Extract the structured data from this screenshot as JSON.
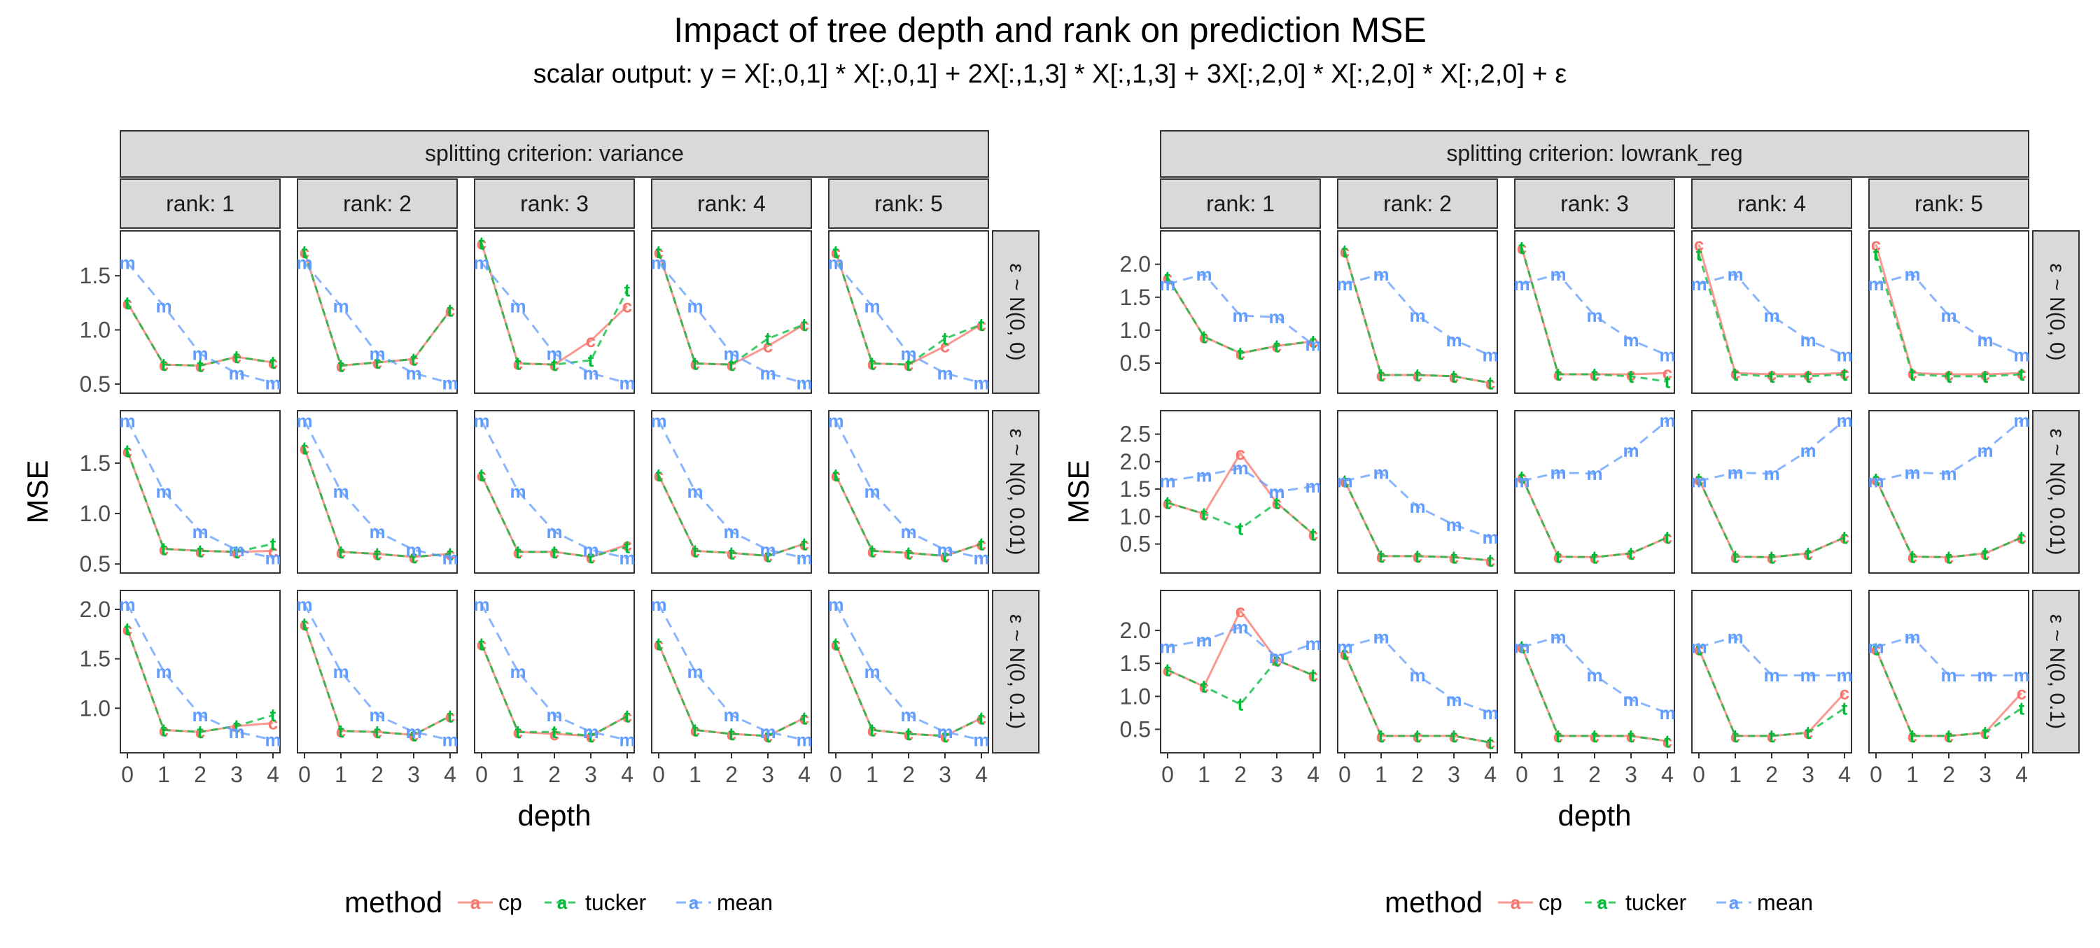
{
  "title": "Impact of tree depth and rank on prediction MSE",
  "subtitle": "scalar output:  y = X[:,0,1] * X[:,0,1] + 2X[:,1,3] * X[:,1,3] + 3X[:,2,0] * X[:,2,0] * X[:,2,0] + ε",
  "colors": {
    "cp": "#F8766D",
    "tucker": "#00BA38",
    "mean": "#619CFF",
    "strip_bg": "#D9D9D9",
    "panel_border": "#333333"
  },
  "legend": {
    "title": "method",
    "keys": [
      "a",
      "a",
      "a"
    ]
  },
  "chart_data": [
    {
      "type": "line",
      "strip": "splitting criterion: variance",
      "xlabel": "depth",
      "ylabel": "MSE",
      "x": [
        0,
        1,
        2,
        3,
        4
      ],
      "x_tick_labels": [
        "0",
        "1",
        "2",
        "3",
        "4"
      ],
      "columns": [
        "rank: 1",
        "rank: 2",
        "rank: 3",
        "rank: 4",
        "rank: 5"
      ],
      "legend": [
        "cp",
        "tucker",
        "mean"
      ],
      "point_labels": {
        "cp": "c",
        "tucker": "t",
        "mean": "m"
      },
      "rows": [
        {
          "label": "ε ~ N(0, 0)",
          "ylim": [
            0.48,
            1.85
          ],
          "yticks": [
            0.5,
            1.0,
            1.5
          ],
          "ytick_labels": [
            "0.5",
            "1.0",
            "1.5"
          ],
          "panels": [
            {
              "cp": [
                1.25,
                0.68,
                0.67,
                0.75,
                0.7
              ],
              "tucker": [
                1.25,
                0.68,
                0.67,
                0.75,
                0.7
              ],
              "mean": [
                1.62,
                1.22,
                0.78,
                0.6,
                0.51
              ]
            },
            {
              "cp": [
                1.72,
                0.67,
                0.7,
                0.73,
                1.18
              ],
              "tucker": [
                1.72,
                0.67,
                0.7,
                0.73,
                1.18
              ],
              "mean": [
                1.62,
                1.22,
                0.78,
                0.6,
                0.51
              ]
            },
            {
              "cp": [
                1.8,
                0.69,
                0.68,
                0.9,
                1.22
              ],
              "tucker": [
                1.8,
                0.69,
                0.68,
                0.72,
                1.37
              ],
              "mean": [
                1.62,
                1.22,
                0.78,
                0.6,
                0.51
              ]
            },
            {
              "cp": [
                1.72,
                0.69,
                0.68,
                0.85,
                1.05
              ],
              "tucker": [
                1.72,
                0.69,
                0.68,
                0.92,
                1.05
              ],
              "mean": [
                1.62,
                1.22,
                0.78,
                0.6,
                0.51
              ]
            },
            {
              "cp": [
                1.72,
                0.69,
                0.68,
                0.85,
                1.05
              ],
              "tucker": [
                1.72,
                0.69,
                0.68,
                0.92,
                1.05
              ],
              "mean": [
                1.62,
                1.22,
                0.78,
                0.6,
                0.51
              ]
            }
          ]
        },
        {
          "label": "ε ~ N(0, 0.01)",
          "ylim": [
            0.48,
            1.95
          ],
          "yticks": [
            0.5,
            1.0,
            1.5
          ],
          "ytick_labels": [
            "0.5",
            "1.0",
            "1.5"
          ],
          "panels": [
            {
              "cp": [
                1.62,
                0.65,
                0.63,
                0.62,
                0.63
              ],
              "tucker": [
                1.62,
                0.65,
                0.63,
                0.62,
                0.7
              ],
              "mean": [
                1.92,
                1.22,
                0.82,
                0.64,
                0.56
              ]
            },
            {
              "cp": [
                1.65,
                0.62,
                0.6,
                0.57,
                0.6
              ],
              "tucker": [
                1.65,
                0.62,
                0.6,
                0.57,
                0.6
              ],
              "mean": [
                1.92,
                1.22,
                0.82,
                0.64,
                0.56
              ]
            },
            {
              "cp": [
                1.38,
                0.62,
                0.62,
                0.57,
                0.69
              ],
              "tucker": [
                1.38,
                0.62,
                0.62,
                0.57,
                0.67
              ],
              "mean": [
                1.92,
                1.22,
                0.82,
                0.64,
                0.56
              ]
            },
            {
              "cp": [
                1.38,
                0.63,
                0.61,
                0.58,
                0.7
              ],
              "tucker": [
                1.38,
                0.63,
                0.61,
                0.58,
                0.7
              ],
              "mean": [
                1.92,
                1.22,
                0.82,
                0.64,
                0.56
              ]
            },
            {
              "cp": [
                1.38,
                0.63,
                0.61,
                0.58,
                0.7
              ],
              "tucker": [
                1.38,
                0.63,
                0.61,
                0.58,
                0.7
              ],
              "mean": [
                1.92,
                1.22,
                0.82,
                0.64,
                0.56
              ]
            }
          ]
        },
        {
          "label": "ε ~ N(0, 0.1)",
          "ylim": [
            0.62,
            2.12
          ],
          "yticks": [
            1.0,
            1.5,
            2.0
          ],
          "ytick_labels": [
            "1.0",
            "1.5",
            "2.0"
          ],
          "panels": [
            {
              "cp": [
                1.8,
                0.78,
                0.76,
                0.82,
                0.85
              ],
              "tucker": [
                1.8,
                0.78,
                0.76,
                0.82,
                0.93
              ],
              "mean": [
                2.05,
                1.37,
                0.93,
                0.76,
                0.68
              ]
            },
            {
              "cp": [
                1.85,
                0.77,
                0.76,
                0.73,
                0.92
              ],
              "tucker": [
                1.85,
                0.77,
                0.76,
                0.73,
                0.92
              ],
              "mean": [
                2.05,
                1.37,
                0.93,
                0.76,
                0.68
              ]
            },
            {
              "cp": [
                1.65,
                0.76,
                0.74,
                0.72,
                0.92
              ],
              "tucker": [
                1.65,
                0.76,
                0.76,
                0.72,
                0.92
              ],
              "mean": [
                2.05,
                1.37,
                0.93,
                0.76,
                0.68
              ]
            },
            {
              "cp": [
                1.65,
                0.78,
                0.74,
                0.72,
                0.9
              ],
              "tucker": [
                1.65,
                0.78,
                0.74,
                0.72,
                0.9
              ],
              "mean": [
                2.05,
                1.37,
                0.93,
                0.76,
                0.68
              ]
            },
            {
              "cp": [
                1.65,
                0.78,
                0.74,
                0.72,
                0.9
              ],
              "tucker": [
                1.65,
                0.78,
                0.74,
                0.72,
                0.9
              ],
              "mean": [
                2.05,
                1.37,
                0.93,
                0.76,
                0.68
              ]
            }
          ]
        }
      ]
    },
    {
      "type": "line",
      "strip": "splitting criterion: lowrank_reg",
      "xlabel": "depth",
      "ylabel": "MSE",
      "x": [
        0,
        1,
        2,
        3,
        4
      ],
      "x_tick_labels": [
        "0",
        "1",
        "2",
        "3",
        "4"
      ],
      "columns": [
        "rank: 1",
        "rank: 2",
        "rank: 3",
        "rank: 4",
        "rank: 5"
      ],
      "legend": [
        "cp",
        "tucker",
        "mean"
      ],
      "point_labels": {
        "cp": "c",
        "tucker": "t",
        "mean": "m"
      },
      "rows": [
        {
          "label": "ε ~ N(0, 0)",
          "ylim": [
            0.15,
            2.4
          ],
          "yticks": [
            0.5,
            1.0,
            1.5,
            2.0
          ],
          "ytick_labels": [
            "0.5",
            "1.0",
            "1.5",
            "2.0"
          ],
          "panels": [
            {
              "cp": [
                1.8,
                0.9,
                0.65,
                0.76,
                0.83
              ],
              "tucker": [
                1.8,
                0.9,
                0.65,
                0.76,
                0.83
              ],
              "mean": [
                1.7,
                1.85,
                1.22,
                1.2,
                0.78
              ]
            },
            {
              "cp": [
                2.2,
                0.32,
                0.32,
                0.3,
                0.2
              ],
              "tucker": [
                2.2,
                0.32,
                0.32,
                0.3,
                0.2
              ],
              "mean": [
                1.7,
                1.85,
                1.22,
                0.85,
                0.62
              ]
            },
            {
              "cp": [
                2.25,
                0.33,
                0.33,
                0.33,
                0.35
              ],
              "tucker": [
                2.25,
                0.33,
                0.33,
                0.3,
                0.22
              ],
              "mean": [
                1.7,
                1.85,
                1.22,
                0.85,
                0.62
              ]
            },
            {
              "cp": [
                2.3,
                0.35,
                0.33,
                0.33,
                0.35
              ],
              "tucker": [
                2.15,
                0.33,
                0.3,
                0.3,
                0.33
              ],
              "mean": [
                1.7,
                1.85,
                1.22,
                0.85,
                0.62
              ]
            },
            {
              "cp": [
                2.3,
                0.35,
                0.33,
                0.33,
                0.35
              ],
              "tucker": [
                2.15,
                0.33,
                0.3,
                0.3,
                0.33
              ],
              "mean": [
                1.7,
                1.85,
                1.22,
                0.85,
                0.62
              ]
            }
          ]
        },
        {
          "label": "ε ~ N(0, 0.01)",
          "ylim": [
            0.1,
            2.8
          ],
          "yticks": [
            0.5,
            1.0,
            1.5,
            2.0,
            2.5
          ],
          "ytick_labels": [
            "0.5",
            "1.0",
            "1.5",
            "2.0",
            "2.5"
          ],
          "panels": [
            {
              "cp": [
                1.25,
                1.05,
                2.15,
                1.25,
                0.68
              ],
              "tucker": [
                1.25,
                1.05,
                0.78,
                1.25,
                0.68
              ],
              "mean": [
                1.65,
                1.75,
                1.88,
                1.45,
                1.55
              ]
            },
            {
              "cp": [
                1.65,
                0.28,
                0.28,
                0.26,
                0.2
              ],
              "tucker": [
                1.65,
                0.28,
                0.28,
                0.26,
                0.2
              ],
              "mean": [
                1.65,
                1.8,
                1.18,
                0.85,
                0.62
              ]
            },
            {
              "cp": [
                1.72,
                0.27,
                0.26,
                0.33,
                0.62
              ],
              "tucker": [
                1.72,
                0.27,
                0.26,
                0.33,
                0.62
              ],
              "mean": [
                1.65,
                1.8,
                1.78,
                2.2,
                2.75
              ]
            },
            {
              "cp": [
                1.68,
                0.27,
                0.26,
                0.33,
                0.62
              ],
              "tucker": [
                1.68,
                0.27,
                0.26,
                0.33,
                0.62
              ],
              "mean": [
                1.65,
                1.8,
                1.78,
                2.2,
                2.75
              ]
            },
            {
              "cp": [
                1.68,
                0.27,
                0.26,
                0.33,
                0.62
              ],
              "tucker": [
                1.68,
                0.27,
                0.26,
                0.33,
                0.62
              ],
              "mean": [
                1.65,
                1.8,
                1.78,
                2.2,
                2.75
              ]
            }
          ]
        },
        {
          "label": "ε ~ N(0, 0.1)",
          "ylim": [
            0.25,
            2.5
          ],
          "yticks": [
            0.5,
            1.0,
            1.5,
            2.0
          ],
          "ytick_labels": [
            "0.5",
            "1.0",
            "1.5",
            "2.0"
          ],
          "panels": [
            {
              "cp": [
                1.4,
                1.15,
                2.3,
                1.55,
                1.32
              ],
              "tucker": [
                1.4,
                1.15,
                0.88,
                1.55,
                1.32
              ],
              "mean": [
                1.75,
                1.85,
                2.05,
                1.6,
                1.8
              ]
            },
            {
              "cp": [
                1.65,
                0.4,
                0.4,
                0.4,
                0.3
              ],
              "tucker": [
                1.65,
                0.4,
                0.4,
                0.4,
                0.3
              ],
              "mean": [
                1.75,
                1.9,
                1.32,
                0.95,
                0.75
              ]
            },
            {
              "cp": [
                1.75,
                0.4,
                0.4,
                0.4,
                0.32
              ],
              "tucker": [
                1.75,
                0.4,
                0.4,
                0.4,
                0.32
              ],
              "mean": [
                1.75,
                1.9,
                1.32,
                0.95,
                0.75
              ]
            },
            {
              "cp": [
                1.72,
                0.4,
                0.4,
                0.45,
                1.05
              ],
              "tucker": [
                1.72,
                0.4,
                0.4,
                0.45,
                0.82
              ],
              "mean": [
                1.75,
                1.9,
                1.32,
                1.32,
                1.32
              ]
            },
            {
              "cp": [
                1.72,
                0.4,
                0.4,
                0.45,
                1.05
              ],
              "tucker": [
                1.72,
                0.4,
                0.4,
                0.45,
                0.82
              ],
              "mean": [
                1.75,
                1.9,
                1.32,
                1.32,
                1.32
              ]
            }
          ]
        }
      ]
    }
  ]
}
